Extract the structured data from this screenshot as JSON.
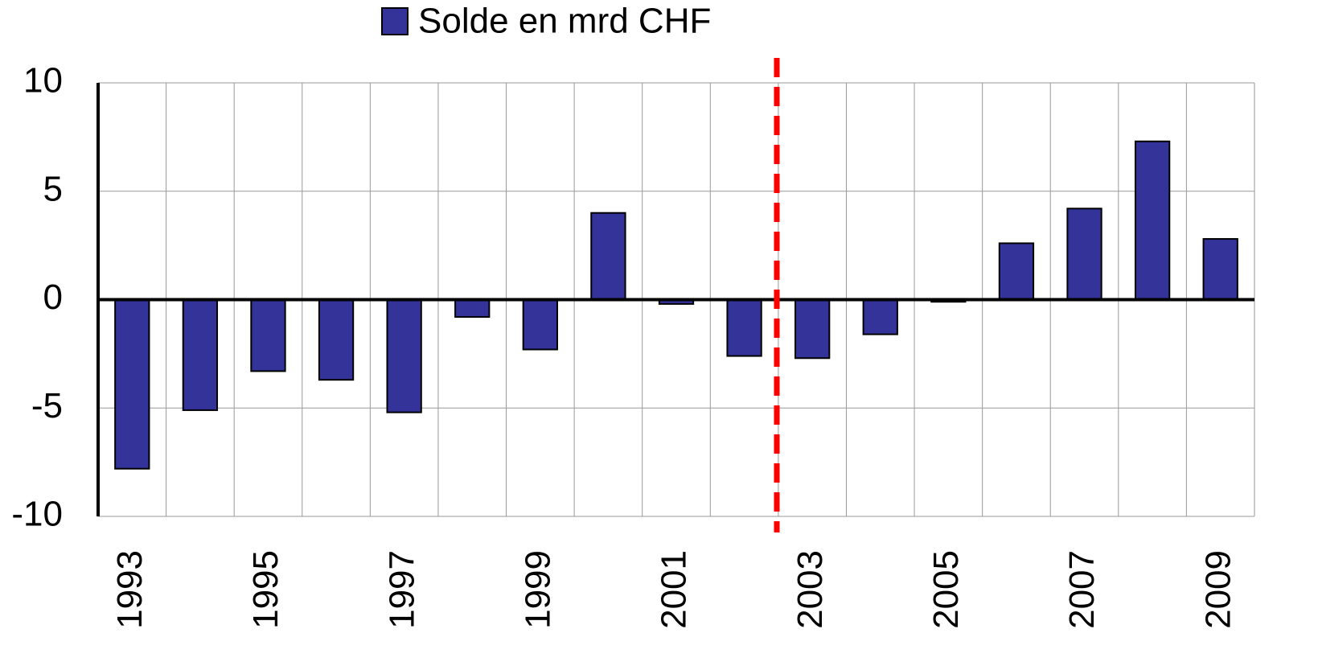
{
  "chart_data": {
    "type": "bar",
    "categories": [
      "1993",
      null,
      "1995",
      null,
      "1997",
      null,
      "1999",
      null,
      "2001",
      null,
      "2003",
      null,
      "2005",
      null,
      "2007",
      null,
      "2009"
    ],
    "series": [
      {
        "name": "Solde en mrd CHF",
        "color": "#333399",
        "values": [
          -7.8,
          -5.1,
          -3.3,
          -3.7,
          -5.2,
          -0.8,
          -2.3,
          4.0,
          -0.2,
          -2.6,
          -2.7,
          -1.6,
          -0.1,
          2.6,
          4.2,
          7.3,
          2.8
        ]
      }
    ],
    "ylim": [
      -10,
      10
    ],
    "yticks": [
      -10,
      -5,
      0,
      5,
      10
    ],
    "grid": true,
    "legend": "top"
  }
}
